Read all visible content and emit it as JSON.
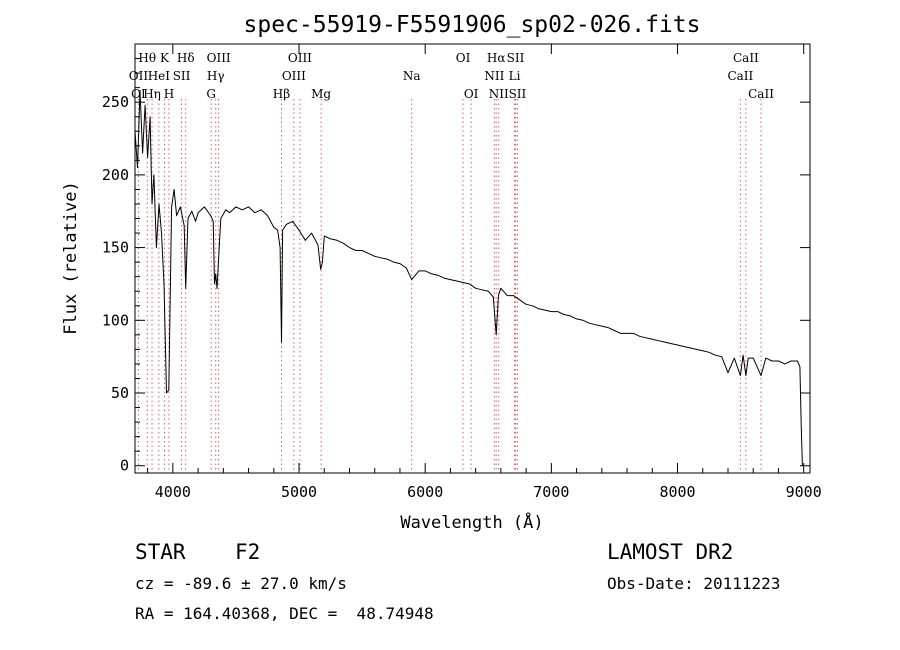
{
  "chart_data": {
    "type": "line",
    "title": "spec-55919-F5591906_sp02-026.fits",
    "xlabel": "Wavelength (Å)",
    "ylabel": "Flux (relative)",
    "xlim": [
      3700,
      9050
    ],
    "ylim": [
      -5,
      290
    ],
    "xticks": [
      4000,
      5000,
      6000,
      7000,
      8000,
      9000
    ],
    "yticks": [
      0,
      50,
      100,
      150,
      200,
      250
    ],
    "grid": false,
    "series": [
      {
        "x": [
          3700,
          3720,
          3740,
          3760,
          3780,
          3800,
          3820,
          3835,
          3850,
          3870,
          3890,
          3910,
          3930,
          3950,
          3968,
          3990,
          4010,
          4030,
          4060,
          4090,
          4102,
          4120,
          4150,
          4180,
          4200,
          4250,
          4300,
          4320,
          4330,
          4340,
          4350,
          4380,
          4420,
          4450,
          4500,
          4550,
          4600,
          4650,
          4700,
          4750,
          4800,
          4830,
          4850,
          4861,
          4870,
          4900,
          4950,
          5000,
          5050,
          5100,
          5150,
          5172,
          5185,
          5200,
          5250,
          5300,
          5350,
          5400,
          5450,
          5500,
          5550,
          5600,
          5650,
          5700,
          5750,
          5800,
          5850,
          5893,
          5950,
          6000,
          6050,
          6100,
          6150,
          6200,
          6250,
          6300,
          6350,
          6400,
          6450,
          6500,
          6540,
          6563,
          6580,
          6600,
          6650,
          6700,
          6750,
          6800,
          6850,
          6900,
          6950,
          7000,
          7050,
          7100,
          7150,
          7200,
          7250,
          7300,
          7350,
          7400,
          7450,
          7500,
          7550,
          7600,
          7650,
          7700,
          7750,
          7800,
          7850,
          7900,
          7950,
          8000,
          8050,
          8100,
          8150,
          8200,
          8250,
          8300,
          8350,
          8400,
          8450,
          8498,
          8520,
          8542,
          8560,
          8600,
          8662,
          8700,
          8750,
          8800,
          8850,
          8900,
          8950,
          8970,
          8980,
          8990
        ],
        "y": [
          230,
          205,
          258,
          215,
          248,
          212,
          240,
          180,
          200,
          150,
          180,
          160,
          125,
          50,
          52,
          178,
          190,
          172,
          178,
          165,
          122,
          170,
          175,
          168,
          174,
          178,
          172,
          168,
          125,
          132,
          122,
          170,
          176,
          174,
          178,
          176,
          178,
          174,
          176,
          172,
          164,
          162,
          150,
          85,
          162,
          166,
          168,
          162,
          155,
          160,
          152,
          135,
          140,
          158,
          156,
          155,
          153,
          150,
          148,
          148,
          146,
          144,
          143,
          142,
          140,
          139,
          136,
          128,
          134,
          134,
          132,
          131,
          129,
          128,
          127,
          126,
          125,
          122,
          121,
          120,
          116,
          90,
          117,
          122,
          117,
          117,
          114,
          111,
          110,
          108,
          107,
          106,
          106,
          104,
          103,
          101,
          100,
          98,
          97,
          96,
          95,
          93,
          91,
          91,
          91,
          89,
          88,
          87,
          86,
          85,
          84,
          83,
          82,
          81,
          80,
          79,
          78,
          76,
          75,
          64,
          74,
          62,
          76,
          62,
          74,
          74,
          62,
          74,
          72,
          72,
          70,
          72,
          72,
          68,
          28,
          0
        ]
      }
    ],
    "line_labels": [
      {
        "label": "Hθ",
        "x": 3797,
        "row": 1
      },
      {
        "label": "K",
        "x": 3934,
        "row": 1
      },
      {
        "label": "Hδ",
        "x": 4102,
        "row": 1
      },
      {
        "label": "OIII",
        "x": 4363,
        "row": 1
      },
      {
        "label": "OIII",
        "x": 5007,
        "row": 1
      },
      {
        "label": "OI",
        "x": 6300,
        "row": 1
      },
      {
        "label": "Hα",
        "x": 6563,
        "row": 1
      },
      {
        "label": "SII",
        "x": 6716,
        "row": 1
      },
      {
        "label": "CaII",
        "x": 8542,
        "row": 1
      },
      {
        "label": "OII",
        "x": 3727,
        "row": 2
      },
      {
        "label": "HeI",
        "x": 3889,
        "row": 2
      },
      {
        "label": "SII",
        "x": 4069,
        "row": 2
      },
      {
        "label": "Hγ",
        "x": 4340,
        "row": 2
      },
      {
        "label": "OIII",
        "x": 4959,
        "row": 2
      },
      {
        "label": "Na",
        "x": 5893,
        "row": 2
      },
      {
        "label": "NII",
        "x": 6548,
        "row": 2
      },
      {
        "label": "Li",
        "x": 6708,
        "row": 2
      },
      {
        "label": "CaII",
        "x": 8498,
        "row": 2
      },
      {
        "label": "OI",
        "x": 3727,
        "row": 3
      },
      {
        "label": "Hη",
        "x": 3835,
        "row": 3
      },
      {
        "label": "H",
        "x": 3969,
        "row": 3
      },
      {
        "label": "G",
        "x": 4304,
        "row": 3
      },
      {
        "label": "Hβ",
        "x": 4861,
        "row": 3
      },
      {
        "label": "Mg",
        "x": 5175,
        "row": 3
      },
      {
        "label": "OI",
        "x": 6364,
        "row": 3
      },
      {
        "label": "NII",
        "x": 6583,
        "row": 3
      },
      {
        "label": "SII",
        "x": 6731,
        "row": 3
      },
      {
        "label": "CaII",
        "x": 8662,
        "row": 3
      }
    ],
    "line_markers": [
      3727,
      3797,
      3835,
      3889,
      3934,
      3969,
      4069,
      4102,
      4304,
      4340,
      4363,
      4861,
      4959,
      5007,
      5175,
      5893,
      6300,
      6364,
      6548,
      6563,
      6583,
      6708,
      6716,
      6731,
      8498,
      8542,
      8662
    ],
    "colors": {
      "line": "#000000",
      "markers": "#e06060",
      "axes": "#000000",
      "background": "#ffffff"
    }
  },
  "info": {
    "object_class": "STAR",
    "subclass": "F2",
    "survey": "LAMOST DR2",
    "cz": "cz = -89.6 ± 27.0 km/s",
    "obs_date": "Obs-Date: 20111223",
    "coords": "RA = 164.40368, DEC =  48.74948"
  }
}
